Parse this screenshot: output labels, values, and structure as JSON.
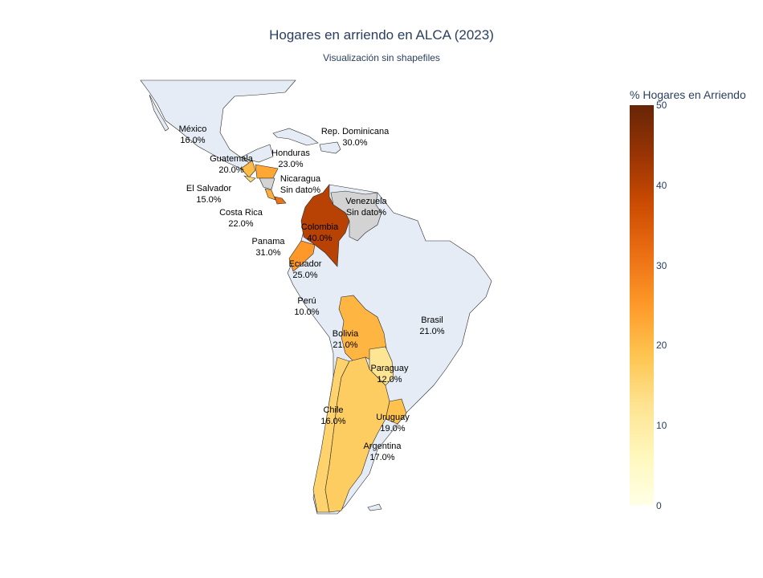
{
  "title": "Hogares en arriendo en ALCA (2023)",
  "subtitle": "Visualización sin shapefiles",
  "colorbar": {
    "title": "% Hogares en Arriendo",
    "ticks": [
      "0",
      "10",
      "20",
      "30",
      "40",
      "50"
    ],
    "range": [
      0,
      50
    ],
    "colorscale": [
      "#ffffe5",
      "#fff7bc",
      "#fee391",
      "#fec44f",
      "#fe9929",
      "#ec7014",
      "#cc4c02",
      "#993404",
      "#662506"
    ]
  },
  "colors": {
    "land": "#e5ecf6",
    "nodata": "#d3d3d3",
    "border": "#2a2a2a"
  },
  "countries": [
    {
      "name": "México",
      "value": 16,
      "label": "16.0%",
      "filled": false
    },
    {
      "name": "Rep. Dominicana",
      "value": 30,
      "label": "30.0%",
      "filled": false
    },
    {
      "name": "Guatemala",
      "value": 20,
      "label": "20.0%",
      "filled": true
    },
    {
      "name": "Honduras",
      "value": 23,
      "label": "23.0%",
      "filled": true
    },
    {
      "name": "El Salvador",
      "value": 15,
      "label": "15.0%",
      "filled": true
    },
    {
      "name": "Nicaragua",
      "value": null,
      "label": "Sin dato%",
      "filled": true
    },
    {
      "name": "Costa Rica",
      "value": 22,
      "label": "22.0%",
      "filled": true
    },
    {
      "name": "Panama",
      "value": 31,
      "label": "31.0%",
      "filled": true
    },
    {
      "name": "Colombia",
      "value": 40,
      "label": "40.0%",
      "filled": true
    },
    {
      "name": "Venezuela",
      "value": null,
      "label": "Sin dato%",
      "filled": true
    },
    {
      "name": "Ecuador",
      "value": 25,
      "label": "25.0%",
      "filled": true
    },
    {
      "name": "Perú",
      "value": 10,
      "label": "10.0%",
      "filled": false
    },
    {
      "name": "Brasil",
      "value": 21,
      "label": "21.0%",
      "filled": false
    },
    {
      "name": "Bolivia",
      "value": 21,
      "label": "21.0%",
      "filled": true
    },
    {
      "name": "Paraguay",
      "value": 12,
      "label": "12.0%",
      "filled": true
    },
    {
      "name": "Chile",
      "value": 16,
      "label": "16.0%",
      "filled": true
    },
    {
      "name": "Uruguay",
      "value": 19,
      "label": "19.0%",
      "filled": true
    },
    {
      "name": "Argentina",
      "value": 17,
      "label": "17.0%",
      "filled": true
    }
  ]
}
